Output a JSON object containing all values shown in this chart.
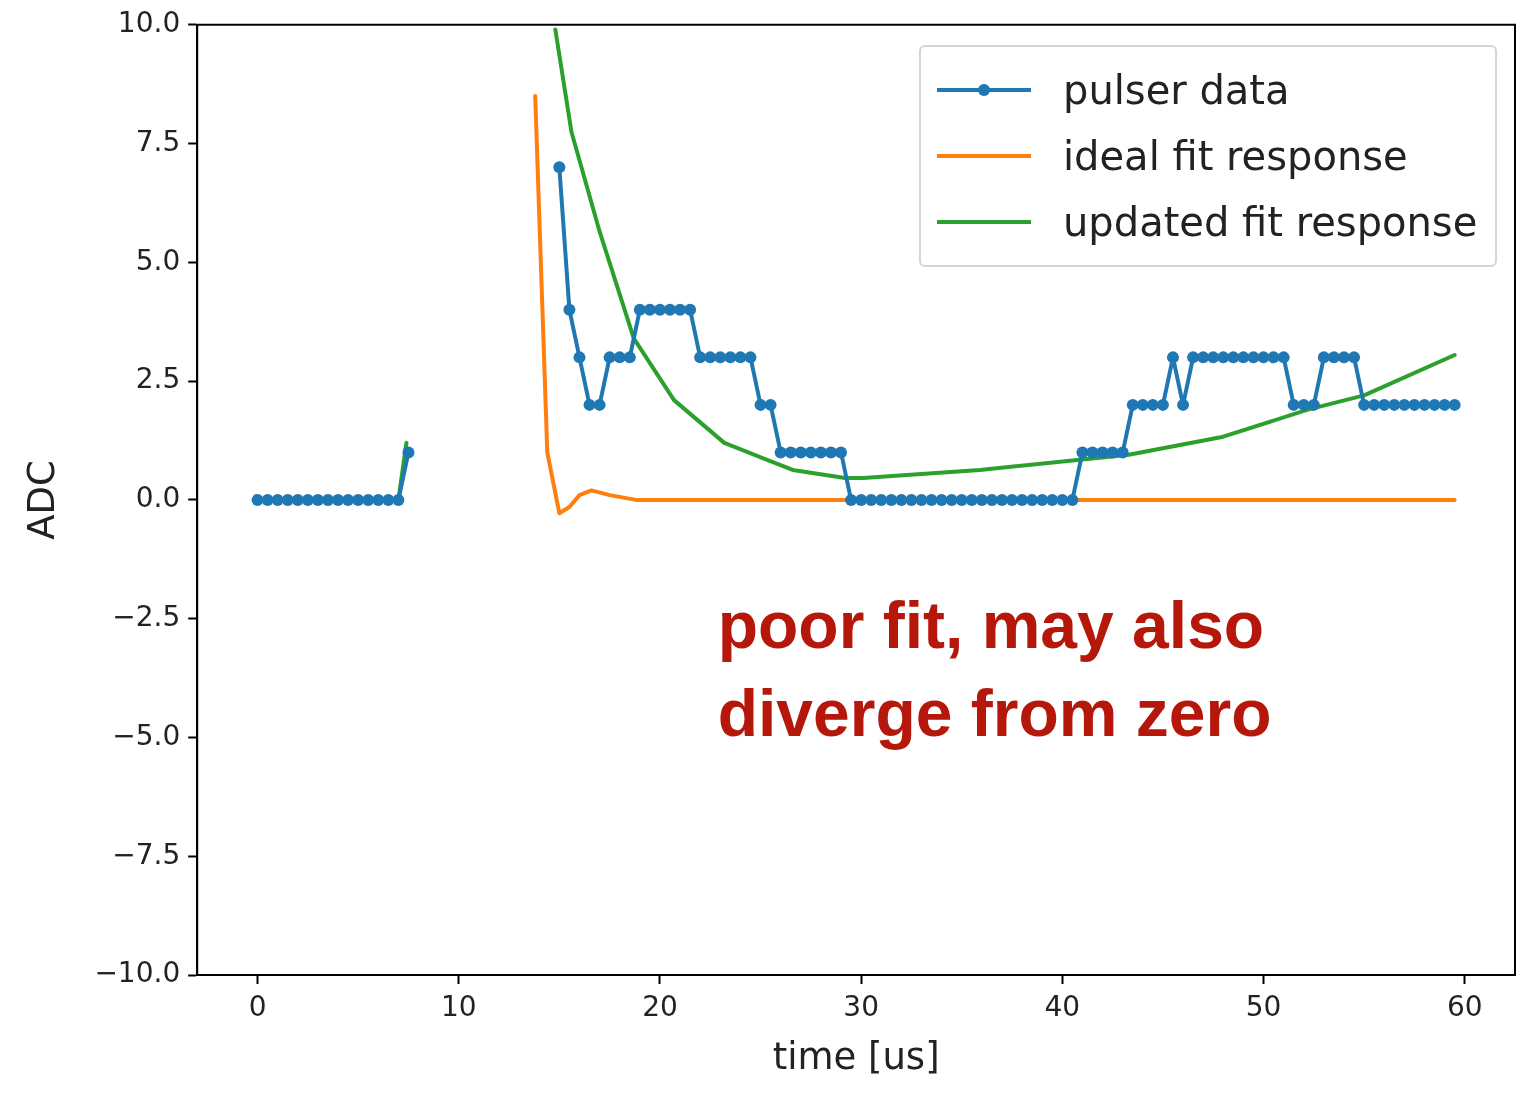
{
  "chart_data": {
    "type": "line",
    "xlabel": "time [us]",
    "ylabel": "ADC",
    "xlim": [
      -3,
      62.5
    ],
    "xticks": [
      0,
      10,
      20,
      30,
      40,
      50,
      60
    ],
    "ylim": [
      -10,
      10
    ],
    "yticks": [
      {
        "value": -10,
        "label": "−10.0"
      },
      {
        "value": -7.5,
        "label": "−7.5"
      },
      {
        "value": -5,
        "label": "−5.0"
      },
      {
        "value": -2.5,
        "label": "−2.5"
      },
      {
        "value": 0,
        "label": "0.0"
      },
      {
        "value": 2.5,
        "label": "2.5"
      },
      {
        "value": 5,
        "label": "5.0"
      },
      {
        "value": 7.5,
        "label": "7.5"
      },
      {
        "value": 10,
        "label": "10.0"
      }
    ],
    "grid": false,
    "legend": "top right",
    "line_style": "solid",
    "annotations": [
      "poor fit, may also diverge from zero"
    ],
    "series": [
      {
        "name": "pulser data",
        "color": "#1f77b4",
        "marker": "circle",
        "x": [
          0,
          0.5,
          1,
          1.5,
          2,
          2.5,
          3,
          3.5,
          4,
          4.5,
          5,
          5.5,
          6,
          6.5,
          7,
          7.5,
          8,
          8.5,
          9,
          9.5,
          10,
          10.5,
          11,
          11.5,
          12,
          12.5,
          13,
          13.5,
          14,
          14.5,
          15,
          15.5,
          16,
          16.5,
          17,
          17.5,
          18,
          18.5,
          19,
          19.5,
          20,
          20.5,
          21,
          21.5,
          22,
          22.5,
          23,
          23.5,
          24,
          24.5,
          25,
          25.5,
          26,
          26.5,
          27,
          27.5,
          28,
          28.5,
          29,
          29.5,
          30,
          30.5,
          31,
          31.5,
          32,
          32.5,
          33,
          33.5,
          34,
          34.5,
          35,
          35.5,
          36,
          36.5,
          37,
          37.5,
          38,
          38.5,
          39,
          39.5,
          40,
          40.5,
          41,
          41.5,
          42,
          42.5,
          43,
          43.5,
          44,
          44.5,
          45,
          45.5,
          46,
          46.5,
          47,
          47.5,
          48,
          48.5,
          49,
          49.5,
          50,
          50.5,
          51,
          51.5,
          52,
          52.5,
          53,
          53.5,
          54,
          54.5,
          55,
          55.5,
          56,
          56.5,
          57,
          57.5,
          58,
          58.5,
          59,
          59.5
        ],
        "values": [
          0,
          0,
          0,
          0,
          0,
          0,
          0,
          0,
          0,
          0,
          0,
          0,
          0,
          0,
          0,
          1,
          null,
          null,
          null,
          null,
          null,
          null,
          null,
          null,
          null,
          null,
          null,
          null,
          null,
          null,
          7,
          4,
          3,
          2,
          2,
          3,
          3,
          3,
          4,
          4,
          4,
          4,
          4,
          4,
          3,
          3,
          3,
          3,
          3,
          3,
          2,
          2,
          1,
          1,
          1,
          1,
          1,
          1,
          1,
          0,
          0,
          0,
          0,
          0,
          0,
          0,
          0,
          0,
          0,
          0,
          0,
          0,
          0,
          0,
          0,
          0,
          0,
          0,
          0,
          0,
          0,
          0,
          1,
          1,
          1,
          1,
          1,
          2,
          2,
          2,
          2,
          3,
          2,
          3,
          3,
          3,
          3,
          3,
          3,
          3,
          3,
          3,
          3,
          2,
          2,
          2,
          3,
          3,
          3,
          3,
          2,
          2,
          2,
          2,
          2,
          2,
          2,
          2,
          2,
          2
        ]
      },
      {
        "name": "ideal fit response",
        "color": "#ff7f0e",
        "marker": "none",
        "x": [
          0,
          7,
          7.5,
          13.8,
          14.4,
          15,
          15.5,
          16,
          16.6,
          17.5,
          18.8,
          59.5
        ],
        "values": [
          0,
          0,
          null,
          8.5,
          1,
          -0.28,
          -0.15,
          0.1,
          0.2,
          0.1,
          0,
          0
        ]
      },
      {
        "name": "updated fit response",
        "color": "#2ca02c",
        "marker": "none",
        "x": [
          0,
          7,
          7.4,
          7.5,
          14.8,
          15.6,
          17,
          18.7,
          20.7,
          23.2,
          26.6,
          29.2,
          30.1,
          35.9,
          41,
          43.3,
          48,
          52.2,
          55,
          59.5
        ],
        "values": [
          0,
          0,
          1.2,
          null,
          9.9,
          7.75,
          5.65,
          3.4,
          2.1,
          1.2,
          0.63,
          0.46,
          0.46,
          0.63,
          0.85,
          0.95,
          1.33,
          1.9,
          2.2,
          3.05
        ]
      }
    ]
  }
}
